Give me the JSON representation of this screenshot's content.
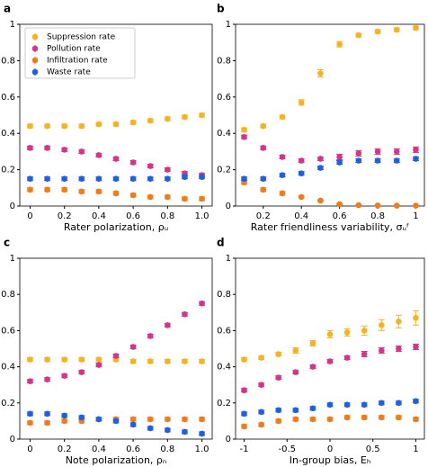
{
  "chart_data": [
    {
      "type": "errorbar",
      "label": "a",
      "xlabel": "Rater polarization, ρᵤ",
      "x": [
        0,
        0.1,
        0.2,
        0.3,
        0.4,
        0.5,
        0.6,
        0.7,
        0.8,
        0.9,
        1.0
      ],
      "xlim": [
        -0.06,
        1.06
      ],
      "xticks": [
        0,
        0.2,
        0.4,
        0.6,
        0.8,
        {
          "value": 1,
          "label": "1.0"
        }
      ],
      "ylim": [
        0,
        1
      ],
      "yticks": [
        0,
        0.2,
        0.4,
        0.6,
        0.8,
        1
      ],
      "legend": "upper left",
      "series": [
        {
          "name": "Suppression rate",
          "color": "#f5b324",
          "values": [
            0.44,
            0.44,
            0.44,
            0.44,
            0.45,
            0.45,
            0.46,
            0.47,
            0.48,
            0.49,
            0.5
          ],
          "errors": [
            0.01,
            0.01,
            0.01,
            0.01,
            0.01,
            0.01,
            0.01,
            0.01,
            0.01,
            0.01,
            0.01
          ]
        },
        {
          "name": "Pollution rate",
          "color": "#d4348a",
          "values": [
            0.32,
            0.32,
            0.31,
            0.3,
            0.28,
            0.26,
            0.24,
            0.22,
            0.2,
            0.18,
            0.17
          ],
          "errors": [
            0.01,
            0.01,
            0.01,
            0.01,
            0.01,
            0.01,
            0.01,
            0.01,
            0.01,
            0.01,
            0.01
          ]
        },
        {
          "name": "Infiltration rate",
          "color": "#ef7b1a",
          "values": [
            0.09,
            0.09,
            0.09,
            0.08,
            0.08,
            0.07,
            0.06,
            0.05,
            0.05,
            0.04,
            0.04
          ],
          "errors": [
            0.01,
            0.01,
            0.01,
            0.01,
            0.01,
            0.01,
            0.01,
            0.01,
            0.01,
            0.01,
            0.01
          ]
        },
        {
          "name": "Waste rate",
          "color": "#1f5fe0",
          "values": [
            0.15,
            0.15,
            0.15,
            0.15,
            0.15,
            0.15,
            0.15,
            0.15,
            0.15,
            0.16,
            0.16
          ],
          "errors": [
            0.01,
            0.01,
            0.01,
            0.01,
            0.01,
            0.01,
            0.01,
            0.01,
            0.01,
            0.01,
            0.01
          ]
        }
      ]
    },
    {
      "type": "errorbar",
      "label": "b",
      "xlabel": "Rater friendliness variability, σᵤᶠ",
      "x": [
        0.1,
        0.2,
        0.3,
        0.4,
        0.5,
        0.6,
        0.7,
        0.8,
        0.9,
        1.0
      ],
      "xlim": [
        0.055,
        1.045
      ],
      "xticks": [
        0.2,
        0.4,
        0.6,
        0.8,
        1
      ],
      "ylim": [
        0,
        1
      ],
      "yticks": [
        0,
        0.2,
        0.4,
        0.6,
        0.8,
        1
      ],
      "series": [
        {
          "color": "#f5b324",
          "values": [
            0.42,
            0.44,
            0.49,
            0.57,
            0.73,
            0.89,
            0.94,
            0.96,
            0.97,
            0.98
          ],
          "errors": [
            0.01,
            0.01,
            0.01,
            0.015,
            0.02,
            0.015,
            0.01,
            0.01,
            0.01,
            0.01
          ]
        },
        {
          "color": "#d4348a",
          "values": [
            0.38,
            0.32,
            0.27,
            0.25,
            0.26,
            0.27,
            0.29,
            0.3,
            0.3,
            0.31
          ],
          "errors": [
            0.01,
            0.01,
            0.01,
            0.01,
            0.01,
            0.015,
            0.015,
            0.015,
            0.015,
            0.015
          ]
        },
        {
          "color": "#ef7b1a",
          "values": [
            0.13,
            0.09,
            0.07,
            0.05,
            0.03,
            0.01,
            0.005,
            0.003,
            0.002,
            0.002
          ],
          "errors": [
            0.01,
            0.01,
            0.01,
            0.005,
            0.005,
            0.005,
            0.003,
            0.002,
            0.002,
            0.002
          ]
        },
        {
          "color": "#1f5fe0",
          "values": [
            0.15,
            0.15,
            0.17,
            0.18,
            0.21,
            0.24,
            0.25,
            0.25,
            0.25,
            0.26
          ],
          "errors": [
            0.01,
            0.01,
            0.01,
            0.01,
            0.01,
            0.01,
            0.01,
            0.01,
            0.01,
            0.01
          ]
        }
      ]
    },
    {
      "type": "errorbar",
      "label": "c",
      "xlabel": "Note polarization, ρₙ",
      "x": [
        0,
        0.1,
        0.2,
        0.3,
        0.4,
        0.5,
        0.6,
        0.7,
        0.8,
        0.9,
        1.0
      ],
      "xlim": [
        -0.06,
        1.06
      ],
      "xticks": [
        0,
        0.2,
        0.4,
        0.6,
        0.8,
        {
          "value": 1,
          "label": "1.0"
        }
      ],
      "ylim": [
        0,
        1
      ],
      "yticks": [
        0,
        0.2,
        0.4,
        0.6,
        0.8,
        1
      ],
      "series": [
        {
          "color": "#f5b324",
          "values": [
            0.44,
            0.44,
            0.44,
            0.44,
            0.44,
            0.44,
            0.43,
            0.43,
            0.43,
            0.43,
            0.43
          ],
          "errors": [
            0.01,
            0.01,
            0.01,
            0.01,
            0.01,
            0.01,
            0.01,
            0.01,
            0.01,
            0.01,
            0.01
          ]
        },
        {
          "color": "#d4348a",
          "values": [
            0.32,
            0.33,
            0.35,
            0.37,
            0.41,
            0.46,
            0.51,
            0.57,
            0.63,
            0.69,
            0.75
          ],
          "errors": [
            0.01,
            0.01,
            0.01,
            0.01,
            0.01,
            0.01,
            0.01,
            0.01,
            0.01,
            0.01,
            0.01
          ]
        },
        {
          "color": "#ef7b1a",
          "values": [
            0.09,
            0.09,
            0.1,
            0.1,
            0.11,
            0.11,
            0.11,
            0.11,
            0.11,
            0.11,
            0.11
          ],
          "errors": [
            0.01,
            0.01,
            0.01,
            0.01,
            0.01,
            0.01,
            0.01,
            0.01,
            0.01,
            0.01,
            0.01
          ]
        },
        {
          "color": "#1f5fe0",
          "values": [
            0.14,
            0.14,
            0.13,
            0.12,
            0.11,
            0.1,
            0.08,
            0.06,
            0.05,
            0.04,
            0.03
          ],
          "errors": [
            0.01,
            0.01,
            0.01,
            0.01,
            0.01,
            0.01,
            0.01,
            0.01,
            0.01,
            0.01,
            0.01
          ]
        }
      ]
    },
    {
      "type": "errorbar",
      "label": "d",
      "xlabel": "In-group bias, Eₕ",
      "x": [
        -1,
        -0.8,
        -0.6,
        -0.4,
        -0.2,
        0,
        0.2,
        0.4,
        0.6,
        0.8,
        1
      ],
      "xlim": [
        -1.1,
        1.1
      ],
      "xticks": [
        -1,
        -0.5,
        0,
        0.5,
        1
      ],
      "ylim": [
        0,
        1
      ],
      "yticks": [
        0,
        0.2,
        0.4,
        0.6,
        0.8,
        1
      ],
      "series": [
        {
          "color": "#f5b324",
          "values": [
            0.44,
            0.45,
            0.47,
            0.49,
            0.53,
            0.58,
            0.59,
            0.6,
            0.63,
            0.65,
            0.67
          ],
          "errors": [
            0.01,
            0.01,
            0.01,
            0.015,
            0.015,
            0.02,
            0.02,
            0.025,
            0.03,
            0.035,
            0.04
          ]
        },
        {
          "color": "#d4348a",
          "values": [
            0.27,
            0.3,
            0.34,
            0.37,
            0.4,
            0.43,
            0.45,
            0.47,
            0.49,
            0.5,
            0.51
          ],
          "errors": [
            0.01,
            0.01,
            0.01,
            0.01,
            0.01,
            0.01,
            0.01,
            0.015,
            0.015,
            0.015,
            0.015
          ]
        },
        {
          "color": "#ef7b1a",
          "values": [
            0.07,
            0.08,
            0.1,
            0.11,
            0.11,
            0.11,
            0.12,
            0.12,
            0.12,
            0.12,
            0.11
          ],
          "errors": [
            0.01,
            0.01,
            0.01,
            0.01,
            0.01,
            0.01,
            0.01,
            0.01,
            0.01,
            0.01,
            0.01
          ]
        },
        {
          "color": "#1f5fe0",
          "values": [
            0.14,
            0.15,
            0.16,
            0.16,
            0.17,
            0.19,
            0.19,
            0.19,
            0.2,
            0.2,
            0.21
          ],
          "errors": [
            0.01,
            0.01,
            0.01,
            0.01,
            0.01,
            0.01,
            0.01,
            0.01,
            0.01,
            0.01,
            0.01
          ]
        }
      ]
    }
  ]
}
